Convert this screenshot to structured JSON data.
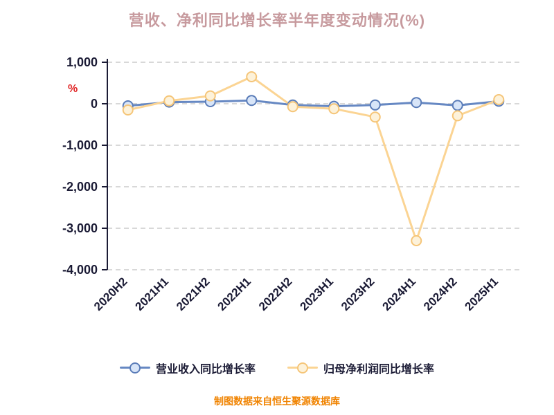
{
  "title": "营收、净利同比增长率半年度变动情况(%)",
  "y_axis_unit": "%",
  "footer": "制图数据来自恒生聚源数据库",
  "colors": {
    "title": "#c79a9e",
    "axis_text": "#1b1b35",
    "axis_line": "#1b1b35",
    "grid": "#cccccc",
    "unit_label": "#e02424",
    "footer": "#f08300"
  },
  "chart_data": {
    "type": "line",
    "title": "营收、净利同比增长率半年度变动情况(%)",
    "categories": [
      "2020H2",
      "2021H1",
      "2021H2",
      "2022H1",
      "2022H2",
      "2023H1",
      "2023H2",
      "2024H1",
      "2024H2",
      "2025H1"
    ],
    "series": [
      {
        "name": "营业收入同比增长率",
        "values": [
          -50,
          40,
          50,
          80,
          -30,
          -60,
          -30,
          30,
          -40,
          60
        ],
        "line_color": "#6688c3",
        "marker_fill": "#d8e5f8",
        "marker_stroke": "#5a7cb8"
      },
      {
        "name": "归母净利润同比增长率",
        "values": [
          -150,
          70,
          190,
          650,
          -70,
          -120,
          -320,
          -3300,
          -290,
          100
        ],
        "line_color": "#fbd493",
        "marker_fill": "#fdf2da",
        "marker_stroke": "#f5c578"
      }
    ],
    "ylabel": "%",
    "ylim": [
      -4000,
      1000
    ],
    "yticks": [
      1000,
      0,
      -1000,
      -2000,
      -3000,
      -4000
    ],
    "grid": "horizontal-dashed",
    "legend_position": "bottom"
  }
}
